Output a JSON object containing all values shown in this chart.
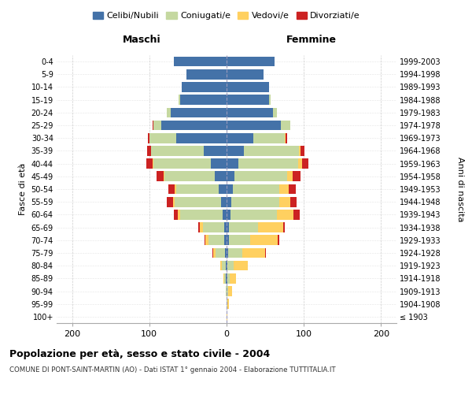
{
  "age_groups": [
    "100+",
    "95-99",
    "90-94",
    "85-89",
    "80-84",
    "75-79",
    "70-74",
    "65-69",
    "60-64",
    "55-59",
    "50-54",
    "45-49",
    "40-44",
    "35-39",
    "30-34",
    "25-29",
    "20-24",
    "15-19",
    "10-14",
    "5-9",
    "0-4"
  ],
  "birth_years": [
    "≤ 1903",
    "1904-1908",
    "1909-1913",
    "1914-1918",
    "1919-1923",
    "1924-1928",
    "1929-1933",
    "1934-1938",
    "1939-1943",
    "1944-1948",
    "1949-1953",
    "1954-1958",
    "1959-1963",
    "1964-1968",
    "1969-1973",
    "1974-1978",
    "1979-1983",
    "1984-1988",
    "1989-1993",
    "1994-1998",
    "1999-2003"
  ],
  "colors": {
    "celibi": "#4472a8",
    "coniugati": "#c5d8a0",
    "vedovi": "#ffd060",
    "divorziati": "#cc2222"
  },
  "males": {
    "celibi": [
      0,
      0,
      0,
      1,
      1,
      2,
      3,
      3,
      5,
      7,
      10,
      15,
      20,
      30,
      65,
      85,
      72,
      60,
      58,
      52,
      68
    ],
    "coniugati": [
      0,
      0,
      1,
      2,
      5,
      12,
      20,
      28,
      55,
      60,
      55,
      65,
      75,
      68,
      35,
      10,
      5,
      2,
      0,
      0,
      0
    ],
    "vedovi": [
      0,
      0,
      0,
      1,
      2,
      3,
      4,
      4,
      3,
      2,
      2,
      1,
      1,
      0,
      0,
      0,
      0,
      0,
      0,
      0,
      0
    ],
    "divorziati": [
      0,
      0,
      0,
      0,
      0,
      1,
      2,
      2,
      5,
      8,
      8,
      10,
      8,
      5,
      2,
      1,
      0,
      0,
      0,
      0,
      0
    ]
  },
  "females": {
    "nubili": [
      0,
      0,
      0,
      1,
      1,
      2,
      3,
      3,
      5,
      6,
      8,
      10,
      15,
      22,
      35,
      70,
      60,
      55,
      55,
      48,
      62
    ],
    "coniugate": [
      0,
      1,
      2,
      3,
      8,
      18,
      28,
      38,
      60,
      62,
      60,
      68,
      78,
      72,
      40,
      12,
      5,
      2,
      0,
      0,
      0
    ],
    "vedove": [
      1,
      2,
      5,
      8,
      18,
      30,
      35,
      32,
      22,
      15,
      12,
      8,
      5,
      2,
      1,
      0,
      0,
      0,
      0,
      0,
      0
    ],
    "divorziate": [
      0,
      0,
      0,
      0,
      1,
      1,
      2,
      2,
      8,
      8,
      10,
      10,
      8,
      5,
      2,
      1,
      0,
      0,
      0,
      0,
      0
    ]
  },
  "title_main": "Popolazione per età, sesso e stato civile - 2004",
  "title_sub": "COMUNE DI PONT-SAINT-MARTIN (AO) - Dati ISTAT 1° gennaio 2004 - Elaborazione TUTTITALIA.IT",
  "xlabel_left": "Maschi",
  "xlabel_right": "Femmine",
  "ylabel_left": "Fasce di età",
  "ylabel_right": "Anni di nascita",
  "legend_labels": [
    "Celibi/Nubili",
    "Coniugati/e",
    "Vedovi/e",
    "Divorziati/e"
  ],
  "xlim": 220,
  "background_color": "#ffffff",
  "grid_color": "#cccccc"
}
